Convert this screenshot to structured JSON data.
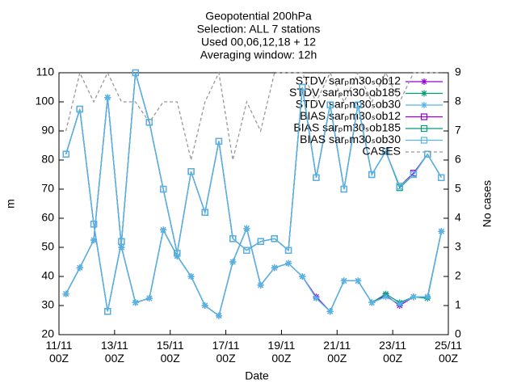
{
  "chart_data": {
    "type": "line",
    "title": [
      "Geopotential 200hPa",
      "Selection: ALL      7 stations",
      "Used 00,06,12,18 + 12",
      "Averaging window: 12h"
    ],
    "xlabel": "Date",
    "ylabel": "m",
    "y2label": "No cases",
    "xlim": [
      11,
      25
    ],
    "xticks": [
      {
        "value": 11,
        "label": "11/11\n00Z"
      },
      {
        "value": 13,
        "label": "13/11\n00Z"
      },
      {
        "value": 15,
        "label": "15/11\n00Z"
      },
      {
        "value": 17,
        "label": "17/11\n00Z"
      },
      {
        "value": 19,
        "label": "19/11\n00Z"
      },
      {
        "value": 21,
        "label": "21/11\n00Z"
      },
      {
        "value": 23,
        "label": "23/11\n00Z"
      },
      {
        "value": 25,
        "label": "25/11\n00Z"
      }
    ],
    "ylim": [
      20,
      110
    ],
    "yticks": [
      20,
      30,
      40,
      50,
      60,
      70,
      80,
      90,
      100,
      110
    ],
    "y2lim": [
      0,
      9
    ],
    "y2ticks": [
      0,
      1,
      2,
      3,
      4,
      5,
      6,
      7,
      8,
      9
    ],
    "x": [
      11.25,
      11.75,
      12.25,
      12.75,
      13.25,
      13.75,
      14.25,
      14.75,
      15.25,
      15.75,
      16.25,
      16.75,
      17.25,
      17.75,
      18.25,
      18.75,
      19.25,
      19.75,
      20.25,
      20.75,
      21.25,
      21.75,
      22.25,
      22.75,
      23.25,
      23.75,
      24.25,
      24.75
    ],
    "series": [
      {
        "name": "STDV sarₚm30ₛob12",
        "color": "#9400d3",
        "marker": "star",
        "values": [
          34,
          43,
          52.5,
          101.5,
          50,
          31,
          32.5,
          56,
          47,
          40,
          30,
          26.5,
          45,
          56.5,
          37,
          43,
          44.5,
          40,
          33,
          28,
          38.5,
          38.5,
          31,
          33.5,
          30,
          33,
          33,
          55.5
        ]
      },
      {
        "name": "STDV sarₚm30ₛob185",
        "color": "#009e73",
        "marker": "star",
        "values": [
          34,
          43,
          52.5,
          101.5,
          50,
          31,
          32.5,
          56,
          47,
          40,
          30,
          26.5,
          45,
          56.5,
          37,
          43,
          44.5,
          40,
          32.5,
          28,
          38.5,
          38.5,
          31,
          34,
          31,
          33,
          32.5,
          55.5
        ]
      },
      {
        "name": "STDV sarₚm30ₛob30",
        "color": "#56b4e9",
        "marker": "star",
        "values": [
          34,
          43,
          52.5,
          101.5,
          50,
          31,
          32.5,
          56,
          47,
          40,
          30,
          26.5,
          45,
          56.5,
          37,
          43,
          44.5,
          40,
          32.5,
          28,
          38.5,
          38.5,
          31,
          33,
          30.5,
          33,
          33,
          55.5
        ]
      },
      {
        "name": "BIAS sarₚm30ₛob12",
        "color": "#9400d3",
        "marker": "square",
        "values": [
          82,
          97.5,
          58,
          28,
          52,
          110,
          93,
          70,
          48,
          76,
          62,
          86.5,
          53,
          49,
          52,
          53,
          49,
          105,
          74,
          99,
          70,
          99,
          75,
          83,
          71,
          75.5,
          82,
          74
        ]
      },
      {
        "name": "BIAS sarₚm30ₛob185",
        "color": "#009e73",
        "marker": "square",
        "values": [
          82,
          97.5,
          58,
          28,
          52,
          110,
          93,
          70,
          48,
          76,
          62,
          86.5,
          53,
          49,
          52,
          53,
          49,
          105,
          74,
          99,
          70,
          99,
          75,
          83,
          70.5,
          75,
          82,
          74
        ]
      },
      {
        "name": "BIAS sarₚm30ₛob30",
        "color": "#56b4e9",
        "marker": "square",
        "values": [
          82,
          97.5,
          58,
          28,
          52,
          110,
          93,
          70,
          48,
          76,
          62,
          86.5,
          53,
          49,
          52,
          53,
          49,
          105,
          74,
          99,
          70,
          99,
          75,
          83,
          71,
          75,
          82,
          74
        ]
      },
      {
        "name": "CASES",
        "color": "#999999",
        "marker": "none",
        "dash": true,
        "axis": "y2",
        "values": [
          7,
          9,
          8,
          9,
          8,
          8,
          7.3,
          8,
          8,
          6,
          8,
          9,
          6,
          8,
          7,
          9,
          9,
          9,
          8,
          9,
          8,
          9,
          8,
          9,
          8,
          9,
          9,
          9
        ]
      }
    ]
  }
}
